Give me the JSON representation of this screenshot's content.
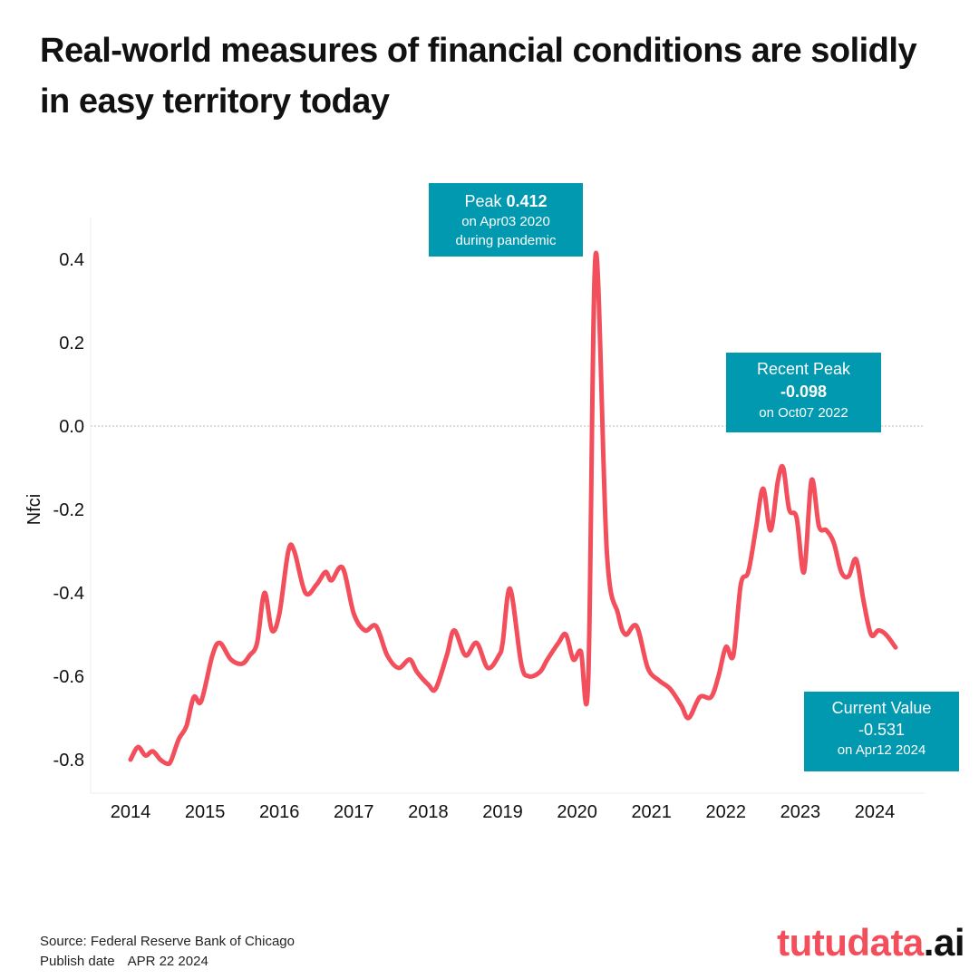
{
  "title": "Real-world measures of financial conditions are solidly in easy territory today",
  "chart_data": {
    "type": "line",
    "ylabel": "Nfci",
    "xlabel": "",
    "ylim": [
      -0.85,
      0.45
    ],
    "xlim": [
      2013.5,
      2024.7
    ],
    "yticks": [
      0.4,
      0.2,
      0.0,
      -0.2,
      -0.4,
      -0.6,
      -0.8
    ],
    "ytick_labels": [
      "0.4",
      "0.2",
      "0.0",
      "-0.2",
      "-0.4",
      "-0.6",
      "-0.8"
    ],
    "xticks": [
      2014,
      2015,
      2016,
      2017,
      2018,
      2019,
      2020,
      2021,
      2022,
      2023,
      2024
    ],
    "xtick_labels": [
      "2014",
      "2015",
      "2016",
      "2017",
      "2018",
      "2019",
      "2020",
      "2021",
      "2022",
      "2023",
      "2024"
    ],
    "reference_line": 0.0,
    "line_color": "#f24e5b",
    "series": [
      {
        "name": "Nfci",
        "x": [
          2014.0,
          2014.1,
          2014.2,
          2014.3,
          2014.4,
          2014.5,
          2014.55,
          2014.65,
          2014.75,
          2014.85,
          2014.95,
          2015.1,
          2015.2,
          2015.35,
          2015.5,
          2015.6,
          2015.7,
          2015.8,
          2015.9,
          2016.0,
          2016.12,
          2016.2,
          2016.35,
          2016.5,
          2016.62,
          2016.7,
          2016.85,
          2017.0,
          2017.15,
          2017.3,
          2017.45,
          2017.6,
          2017.75,
          2017.85,
          2018.0,
          2018.1,
          2018.25,
          2018.35,
          2018.5,
          2018.65,
          2018.8,
          2018.95,
          2019.0,
          2019.1,
          2019.25,
          2019.35,
          2019.5,
          2019.6,
          2019.75,
          2019.85,
          2019.95,
          2020.05,
          2020.15,
          2020.25,
          2020.4,
          2020.55,
          2020.65,
          2020.8,
          2020.95,
          2021.1,
          2021.25,
          2021.4,
          2021.5,
          2021.65,
          2021.8,
          2021.9,
          2022.0,
          2022.1,
          2022.2,
          2022.3,
          2022.4,
          2022.5,
          2022.6,
          2022.7,
          2022.77,
          2022.85,
          2022.95,
          2023.05,
          2023.15,
          2023.25,
          2023.35,
          2023.45,
          2023.55,
          2023.65,
          2023.75,
          2023.85,
          2023.95,
          2024.05,
          2024.15,
          2024.28
        ],
        "values": [
          -0.8,
          -0.77,
          -0.79,
          -0.78,
          -0.8,
          -0.81,
          -0.8,
          -0.75,
          -0.72,
          -0.65,
          -0.66,
          -0.55,
          -0.52,
          -0.56,
          -0.57,
          -0.55,
          -0.52,
          -0.4,
          -0.49,
          -0.45,
          -0.3,
          -0.3,
          -0.4,
          -0.38,
          -0.35,
          -0.37,
          -0.34,
          -0.45,
          -0.49,
          -0.48,
          -0.55,
          -0.58,
          -0.56,
          -0.59,
          -0.62,
          -0.63,
          -0.55,
          -0.49,
          -0.55,
          -0.52,
          -0.58,
          -0.55,
          -0.52,
          -0.39,
          -0.57,
          -0.6,
          -0.59,
          -0.56,
          -0.52,
          -0.5,
          -0.56,
          -0.54,
          -0.61,
          0.412,
          -0.3,
          -0.45,
          -0.5,
          -0.48,
          -0.58,
          -0.61,
          -0.63,
          -0.67,
          -0.7,
          -0.65,
          -0.65,
          -0.6,
          -0.53,
          -0.55,
          -0.38,
          -0.35,
          -0.25,
          -0.15,
          -0.25,
          -0.13,
          -0.1,
          -0.2,
          -0.22,
          -0.35,
          -0.13,
          -0.24,
          -0.25,
          -0.28,
          -0.35,
          -0.36,
          -0.32,
          -0.42,
          -0.5,
          -0.49,
          -0.5,
          -0.531
        ]
      }
    ],
    "annotations": {
      "peak": {
        "label": "Peak",
        "value": "0.412",
        "date_text": "on Apr03 2020",
        "note": "during pandemic"
      },
      "recent_peak": {
        "label": "Recent Peak",
        "value": "-0.098",
        "date_text": "on Oct07 2022"
      },
      "current": {
        "label": "Current Value",
        "value": "-0.531",
        "date_text": "on Apr12 2024"
      }
    }
  },
  "footer": {
    "source": "Source: Federal Reserve Bank of Chicago",
    "publish_label": "Publish date",
    "publish_value": "APR 22 2024"
  },
  "brand": {
    "main": "tutudata",
    "suffix": ".ai"
  }
}
